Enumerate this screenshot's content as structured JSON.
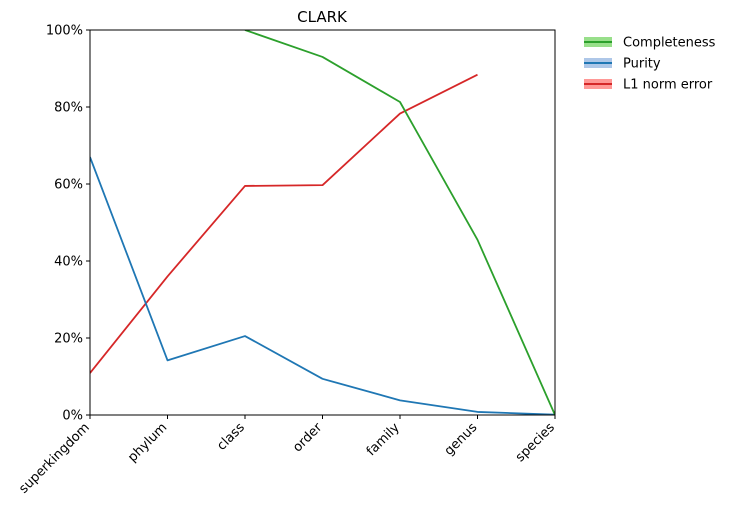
{
  "chart_data": {
    "type": "line",
    "title": "CLARK",
    "xlabel": "",
    "ylabel": "",
    "categories": [
      "superkingdom",
      "phylum",
      "class",
      "order",
      "family",
      "genus",
      "species"
    ],
    "yticks": [
      "0%",
      "20%",
      "40%",
      "60%",
      "80%",
      "100%"
    ],
    "ylim": [
      0,
      100
    ],
    "grid": false,
    "legend_position": "outside-top-right",
    "series": [
      {
        "name": "Completeness",
        "color": "#2ca02c",
        "band_color": "#98df8a",
        "values": [
          null,
          null,
          100,
          93,
          81.3,
          45.5,
          0
        ]
      },
      {
        "name": "Purity",
        "color": "#1f77b4",
        "band_color": "#aec7e8",
        "values": [
          67,
          14.2,
          20.5,
          9.4,
          3.8,
          0.8,
          0.1
        ]
      },
      {
        "name": "L1 norm error",
        "color": "#d62728",
        "band_color": "#ff9896",
        "values": [
          10.9,
          36,
          59.5,
          59.7,
          78.3,
          88.4,
          null
        ]
      }
    ]
  }
}
